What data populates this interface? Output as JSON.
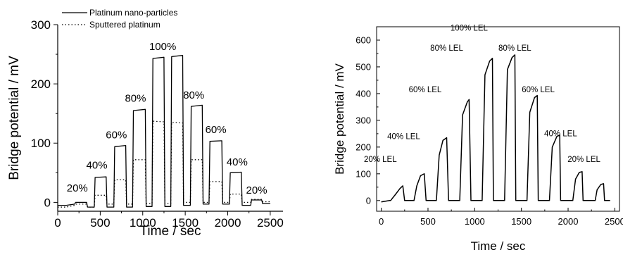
{
  "chart_data": [
    {
      "type": "line",
      "xlabel": "Time / sec",
      "ylabel": "Bridge potential / mV",
      "xlim": [
        0,
        2650
      ],
      "ylim": [
        -15,
        300
      ],
      "xticks": [
        0,
        500,
        1000,
        1500,
        2000,
        2500
      ],
      "yticks": [
        0,
        100,
        200,
        300
      ],
      "legend_position": "top",
      "series": [
        {
          "name": "Platinum nano-particles",
          "style": "solid",
          "x": [
            0,
            100,
            200,
            210,
            340,
            350,
            430,
            440,
            570,
            580,
            660,
            670,
            800,
            810,
            880,
            890,
            1030,
            1040,
            1110,
            1120,
            1250,
            1260,
            1330,
            1340,
            1470,
            1480,
            1560,
            1570,
            1700,
            1710,
            1780,
            1790,
            1930,
            1940,
            2020,
            2030,
            2160,
            2170,
            2270,
            2280,
            2400,
            2410,
            2500
          ],
          "y": [
            -5,
            -5,
            -3,
            0,
            0,
            -8,
            -8,
            42,
            43,
            -8,
            -8,
            94,
            96,
            -8,
            -8,
            155,
            157,
            -7,
            -7,
            243,
            245,
            -7,
            -7,
            246,
            248,
            -5,
            -5,
            162,
            164,
            -3,
            -3,
            103,
            104,
            -3,
            -3,
            50,
            51,
            -5,
            -5,
            4,
            4,
            -2,
            -2
          ]
        },
        {
          "name": "Sputtered platinum",
          "style": "dotted",
          "x": [
            0,
            100,
            200,
            210,
            340,
            350,
            430,
            440,
            570,
            580,
            660,
            670,
            800,
            810,
            880,
            890,
            1030,
            1040,
            1110,
            1120,
            1250,
            1260,
            1330,
            1340,
            1470,
            1480,
            1560,
            1570,
            1700,
            1710,
            1780,
            1790,
            1930,
            1940,
            2020,
            2030,
            2160,
            2170,
            2270,
            2280,
            2400,
            2410,
            2500
          ],
          "y": [
            -8,
            -8,
            -5,
            -3,
            -3,
            -8,
            -8,
            12,
            12,
            -3,
            -3,
            38,
            38,
            -3,
            -3,
            72,
            72,
            -2,
            -2,
            137,
            136,
            -2,
            -2,
            135,
            134,
            0,
            0,
            72,
            72,
            0,
            0,
            35,
            35,
            0,
            0,
            14,
            14,
            0,
            0,
            5,
            5,
            1,
            1
          ]
        }
      ],
      "annotations": [
        {
          "text": "20%",
          "x": 230,
          "y": 18
        },
        {
          "text": "40%",
          "x": 460,
          "y": 57
        },
        {
          "text": "60%",
          "x": 690,
          "y": 108
        },
        {
          "text": "80%",
          "x": 915,
          "y": 170
        },
        {
          "text": "100%",
          "x": 1235,
          "y": 257
        },
        {
          "text": "80%",
          "x": 1600,
          "y": 175
        },
        {
          "text": "60%",
          "x": 1860,
          "y": 117
        },
        {
          "text": "40%",
          "x": 2110,
          "y": 62
        },
        {
          "text": "20%",
          "x": 2340,
          "y": 15
        }
      ]
    },
    {
      "type": "line",
      "xlabel": "Time / sec",
      "ylabel": "Bridge potential / mV",
      "xlim": [
        -50,
        2550
      ],
      "ylim": [
        -40,
        650
      ],
      "xticks": [
        0,
        500,
        1000,
        1500,
        2000,
        2500
      ],
      "yticks": [
        0,
        100,
        200,
        300,
        400,
        500,
        600
      ],
      "series": [
        {
          "style": "solid",
          "x": [
            0,
            90,
            100,
            150,
            200,
            230,
            250,
            340,
            350,
            380,
            420,
            460,
            480,
            580,
            590,
            620,
            660,
            700,
            720,
            830,
            840,
            870,
            920,
            940,
            960,
            1070,
            1080,
            1110,
            1160,
            1190,
            1200,
            1310,
            1320,
            1350,
            1400,
            1430,
            1440,
            1550,
            1560,
            1590,
            1640,
            1670,
            1680,
            1790,
            1800,
            1830,
            1880,
            1910,
            1920,
            2040,
            2050,
            2080,
            2120,
            2150,
            2160,
            2280,
            2290,
            2310,
            2350,
            2380,
            2390,
            2450
          ],
          "y": [
            -5,
            0,
            0,
            22,
            45,
            55,
            0,
            0,
            0,
            55,
            93,
            100,
            0,
            0,
            0,
            170,
            225,
            235,
            0,
            0,
            0,
            320,
            368,
            378,
            0,
            0,
            0,
            470,
            522,
            532,
            0,
            0,
            0,
            490,
            535,
            545,
            0,
            0,
            0,
            330,
            385,
            393,
            0,
            0,
            0,
            200,
            240,
            245,
            0,
            0,
            0,
            80,
            105,
            108,
            0,
            0,
            0,
            40,
            60,
            63,
            0,
            0
          ]
        }
      ],
      "annotations": [
        {
          "text": "20% LEL",
          "x": -10,
          "y": 145
        },
        {
          "text": "40% LEL",
          "x": 240,
          "y": 230
        },
        {
          "text": "60% LEL",
          "x": 470,
          "y": 405
        },
        {
          "text": "80% LEL",
          "x": 700,
          "y": 560
        },
        {
          "text": "100% LEL",
          "x": 940,
          "y": 635
        },
        {
          "text": "80% LEL",
          "x": 1430,
          "y": 560
        },
        {
          "text": "60% LEL",
          "x": 1680,
          "y": 405
        },
        {
          "text": "40% LEL",
          "x": 1920,
          "y": 240
        },
        {
          "text": "20% LEL",
          "x": 2170,
          "y": 145
        }
      ]
    }
  ]
}
